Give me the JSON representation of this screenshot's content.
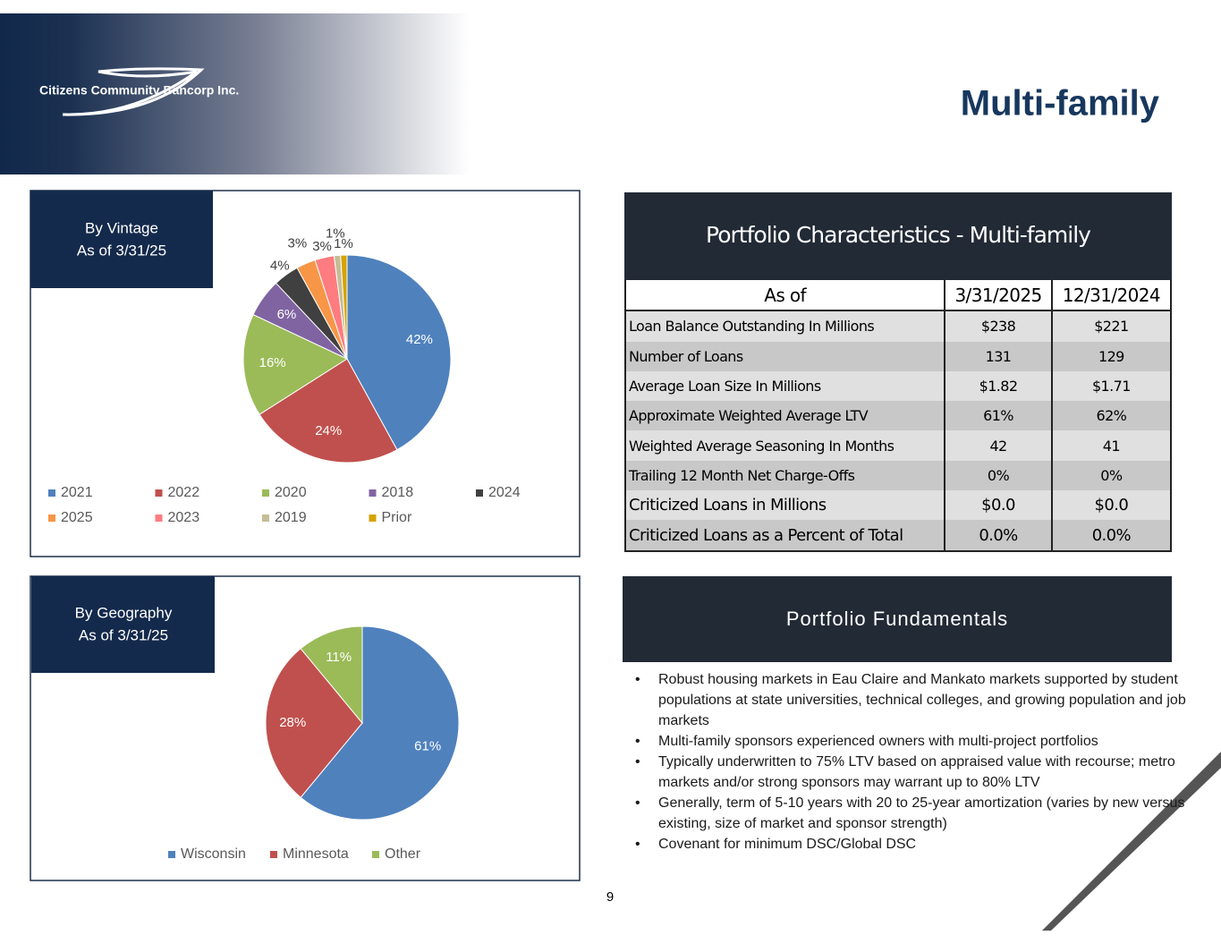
{
  "header": {
    "logo": "Citizens Community Bancorp Inc.",
    "title": "Multi-family"
  },
  "chart_data": [
    {
      "type": "pie",
      "title": "By Vintage",
      "subtitle": "As of 3/31/25",
      "categories": [
        "2021",
        "2022",
        "2020",
        "2018",
        "2024",
        "2025",
        "2023",
        "2019",
        "Prior"
      ],
      "values": [
        42,
        24,
        16,
        6,
        4,
        3,
        3,
        1,
        1
      ],
      "value_labels": [
        "42%",
        "24%",
        "16%",
        "6%",
        "4%",
        "3%",
        "3%",
        "1%",
        "1%"
      ],
      "colors": [
        "#4f81bd",
        "#c0504d",
        "#9bbb59",
        "#8064a2",
        "#404040",
        "#f79646",
        "#ff7c80",
        "#c4bd97",
        "#d6a300"
      ]
    },
    {
      "type": "pie",
      "title": "By Geography",
      "subtitle": "As of 3/31/25",
      "categories": [
        "Wisconsin",
        "Minnesota",
        "Other"
      ],
      "values": [
        61,
        28,
        11
      ],
      "value_labels": [
        "61%",
        "28%",
        "11%"
      ],
      "colors": [
        "#4f81bd",
        "#c0504d",
        "#9bbb59"
      ]
    }
  ],
  "table": {
    "title": "Portfolio Characteristics - Multi-family",
    "header": [
      "As of",
      "3/31/2025",
      "12/31/2024"
    ],
    "rows": [
      [
        "Loan Balance Outstanding In Millions",
        "$238",
        "$221"
      ],
      [
        "Number of Loans",
        "131",
        "129"
      ],
      [
        "Average Loan Size In Millions",
        "$1.82",
        "$1.71"
      ],
      [
        "Approximate Weighted Average LTV",
        "61%",
        "62%"
      ],
      [
        "Weighted Average Seasoning In Months",
        "42",
        "41"
      ],
      [
        "Trailing 12 Month Net Charge-Offs",
        "0%",
        "0%"
      ],
      [
        "Criticized Loans in Millions",
        "$0.0",
        "$0.0"
      ],
      [
        "Criticized Loans as a Percent of Total",
        "0.0%",
        "0.0%"
      ]
    ]
  },
  "fundamentals": {
    "title": "Portfolio Fundamentals",
    "bullets": [
      "Robust housing markets in Eau Claire and Mankato markets supported by student populations at state universities, technical colleges, and growing population and job markets",
      "Multi-family sponsors experienced owners with multi-project portfolios",
      "Typically underwritten to 75% LTV based on appraised value with recourse; metro markets and/or strong sponsors may warrant up to 80% LTV",
      "Generally, term of 5-10 years with 20 to 25-year amortization (varies by new versus existing, size of market and sponsor strength)",
      "Covenant for minimum DSC/Global DSC"
    ]
  },
  "page_number": "9"
}
